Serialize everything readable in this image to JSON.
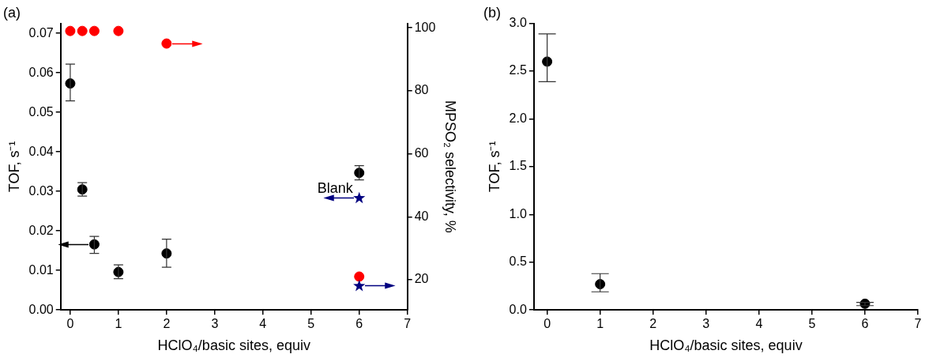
{
  "chart_data": [
    {
      "type": "scatter",
      "title": "(a)",
      "xlabel": "HClO₄/basic sites, equiv",
      "ylabel": "TOF, s⁻¹",
      "y2label": "MPSO₂ selectivity, %",
      "xlim": [
        -0.2,
        7
      ],
      "xticks": [
        0,
        1,
        2,
        3,
        4,
        5,
        6,
        7
      ],
      "ylim": [
        0,
        0.0725
      ],
      "yticks": [
        {
          "value": 0,
          "label": "0.00"
        },
        0.01,
        0.02,
        0.03,
        0.04,
        0.05,
        0.06,
        0.07
      ],
      "y2lim": [
        10.4,
        101.4
      ],
      "y2ticks": [
        20,
        40,
        60,
        80,
        100
      ],
      "grid": false,
      "legend": false,
      "annotations": [
        {
          "text": "Blank",
          "x": 6,
          "y": 0.0283
        }
      ],
      "series": [
        {
          "color": "#000000",
          "marker": "circle",
          "x": [
            0,
            0.25,
            0.5,
            1,
            2,
            6
          ],
          "values": [
            0.0573,
            0.0305,
            0.0166,
            0.0096,
            0.0143,
            0.0347
          ],
          "errors": [
            [
              0.0529,
              0.0622
            ],
            [
              0.0288,
              0.0322
            ],
            [
              0.0143,
              0.0186
            ],
            [
              0.0079,
              0.0114
            ],
            [
              0.0108,
              0.0179
            ],
            [
              0.0329,
              0.0365
            ]
          ]
        },
        {
          "color": "#ff0000",
          "marker": "circle",
          "axis": "y2",
          "x": [
            0,
            0.25,
            0.5,
            1,
            2,
            6
          ],
          "values": [
            99,
            99,
            99,
            99,
            95,
            21
          ]
        },
        {
          "color": "#000080",
          "marker": "star",
          "x": [
            6
          ],
          "values": [
            0.0283
          ]
        },
        {
          "color": "#000080",
          "marker": "star",
          "axis": "y2",
          "x": [
            6
          ],
          "values": [
            18
          ]
        }
      ]
    },
    {
      "type": "scatter",
      "title": "(b)",
      "xlabel": "HClO₄/basic sites, equiv",
      "ylabel": "TOF, s⁻¹",
      "xlim": [
        -0.25,
        7
      ],
      "xticks": [
        0,
        1,
        2,
        3,
        4,
        5,
        6,
        7
      ],
      "ylim": [
        0,
        3.0
      ],
      "yticks": [
        {
          "value": 0,
          "label": "0.0"
        },
        0.5,
        {
          "value": 1,
          "label": "1.0"
        },
        1.5,
        {
          "value": 2,
          "label": "2.0"
        },
        2.5,
        {
          "value": 3,
          "label": "3.0"
        }
      ],
      "grid": false,
      "legend": false,
      "series": [
        {
          "color": "#000000",
          "marker": "circle",
          "x": [
            0,
            1,
            6
          ],
          "values": [
            2.6,
            0.27,
            0.065
          ],
          "errors": [
            [
              2.39,
              2.89
            ],
            [
              0.19,
              0.38
            ],
            [
              0.045,
              0.08
            ]
          ]
        }
      ]
    }
  ]
}
